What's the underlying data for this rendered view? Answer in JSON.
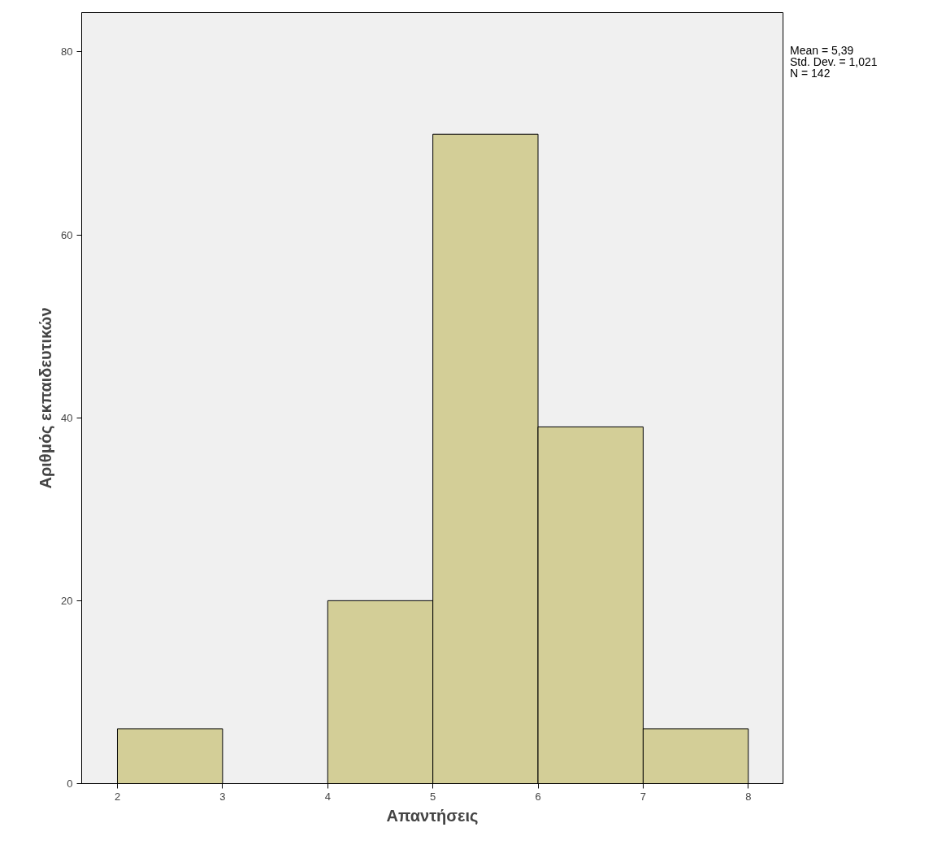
{
  "chart_data": {
    "type": "histogram",
    "xlabel": "Απαντήσεις",
    "ylabel": "Αριθμός εκπαιδευτικών",
    "bins": [
      2,
      3,
      4,
      5,
      6,
      7,
      8
    ],
    "values": [
      6,
      0,
      20,
      71,
      39,
      6
    ],
    "color": "#d3ce97",
    "xlim": [
      1.66,
      8.33
    ],
    "ylim": [
      0,
      84.3
    ],
    "xticks": [
      2,
      3,
      4,
      5,
      6,
      7,
      8
    ],
    "yticks": [
      0,
      20,
      40,
      60,
      80
    ],
    "grid": false,
    "legend": false,
    "annotations": [
      "Mean = 5,39",
      "Std. Dev. = 1,021",
      "N = 142"
    ]
  }
}
